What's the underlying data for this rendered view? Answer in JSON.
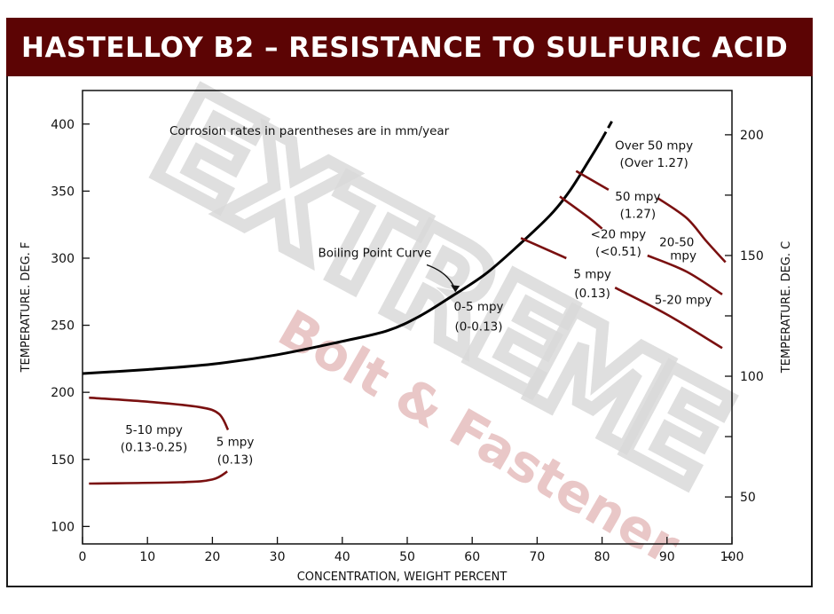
{
  "header": {
    "title": "HASTELLOY B2 – RESISTANCE TO SULFURIC ACID"
  },
  "watermark": {
    "letters": "EXTREME",
    "subtitle": "Bolt & Fastener",
    "color": "#e9c7c7"
  },
  "colors": {
    "title_bar": "#5c0404",
    "iso_curve": "#7a1010",
    "boiling_curve": "#000000"
  },
  "chart_data": {
    "type": "line",
    "title": "",
    "note": "Corrosion rates in parentheses are in mm/year",
    "xlabel": "CONCENTRATION, WEIGHT PERCENT",
    "ylabel_left": "TEMPERATURE. DEG. F",
    "ylabel_right": "TEMPERATURE. DEG. C",
    "xlim": [
      0,
      100
    ],
    "ylim_f": [
      87,
      425
    ],
    "x_ticks": [
      "0",
      "10",
      "20",
      "30",
      "40",
      "50",
      "60",
      "70",
      "80",
      "90",
      "100"
    ],
    "y_ticks_f": [
      "100",
      "150",
      "200",
      "250",
      "300",
      "350",
      "400"
    ],
    "y_ticks_c": [
      "50",
      "100",
      "150",
      "200"
    ],
    "grid": false,
    "series": [
      {
        "name": "Boiling Point Curve",
        "style": "solid",
        "points": [
          [
            0,
            214
          ],
          [
            10,
            217
          ],
          [
            20,
            221
          ],
          [
            30,
            228
          ],
          [
            40,
            238
          ],
          [
            47,
            246
          ],
          [
            52,
            257
          ],
          [
            57,
            272
          ],
          [
            62,
            288
          ],
          [
            67,
            309
          ],
          [
            72,
            332
          ],
          [
            75,
            350
          ],
          [
            78,
            373
          ],
          [
            80,
            389
          ]
        ]
      },
      {
        "name": "",
        "style": "dashed",
        "points": [
          [
            80,
            389
          ],
          [
            81.5,
            402
          ]
        ]
      },
      {
        "name": "",
        "style": "iso",
        "points": [
          [
            1,
            196
          ],
          [
            10,
            193
          ],
          [
            18,
            189
          ],
          [
            21,
            184
          ],
          [
            22.4,
            172
          ]
        ]
      },
      {
        "name": "",
        "style": "iso",
        "points": [
          [
            22.3,
            141
          ],
          [
            20,
            135
          ],
          [
            15,
            133
          ],
          [
            1,
            132
          ]
        ]
      },
      {
        "name": "",
        "style": "iso",
        "points": [
          [
            76,
            365
          ],
          [
            81,
            351
          ]
        ]
      },
      {
        "name": "",
        "style": "iso",
        "points": [
          [
            73.5,
            346
          ],
          [
            78,
            330
          ],
          [
            80,
            322
          ]
        ]
      },
      {
        "name": "",
        "style": "iso",
        "points": [
          [
            67.5,
            315
          ],
          [
            74.5,
            300
          ]
        ]
      },
      {
        "name": "",
        "style": "iso",
        "points": [
          [
            88.5,
            345
          ],
          [
            93,
            330
          ],
          [
            96,
            313
          ],
          [
            99,
            297
          ]
        ]
      },
      {
        "name": "",
        "style": "iso",
        "points": [
          [
            87,
            302
          ],
          [
            93,
            290
          ],
          [
            98.5,
            273
          ]
        ]
      },
      {
        "name": "",
        "style": "iso",
        "points": [
          [
            82,
            278
          ],
          [
            90,
            258
          ],
          [
            98.5,
            233
          ]
        ]
      }
    ],
    "annotations": [
      {
        "text": "Boiling Point Curve",
        "x": 45,
        "y": 301
      },
      {
        "text": "0-5 mpy",
        "x": 61,
        "y": 261
      },
      {
        "text": "(0-0.13)",
        "x": 61,
        "y": 246
      },
      {
        "text": "5-10 mpy",
        "x": 11,
        "y": 169
      },
      {
        "text": "(0.13-0.25)",
        "x": 11,
        "y": 156
      },
      {
        "text": "5 mpy",
        "x": 23.5,
        "y": 160
      },
      {
        "text": "(0.13)",
        "x": 23.5,
        "y": 147
      },
      {
        "text": "Over 50 mpy",
        "x": 88,
        "y": 381
      },
      {
        "text": "(Over 1.27)",
        "x": 88,
        "y": 368
      },
      {
        "text": "50 mpy",
        "x": 85.5,
        "y": 343
      },
      {
        "text": "(1.27)",
        "x": 85.5,
        "y": 330
      },
      {
        "text": "<20 mpy",
        "x": 82.5,
        "y": 315
      },
      {
        "text": "(<0.51)",
        "x": 82.5,
        "y": 302
      },
      {
        "text": "20-50",
        "x": 91.5,
        "y": 309
      },
      {
        "text": "mpy",
        "x": 92.5,
        "y": 299
      },
      {
        "text": "5 mpy",
        "x": 78.5,
        "y": 285
      },
      {
        "text": "(0.13)",
        "x": 78.5,
        "y": 271
      },
      {
        "text": "5-20 mpy",
        "x": 92.5,
        "y": 266
      }
    ]
  }
}
